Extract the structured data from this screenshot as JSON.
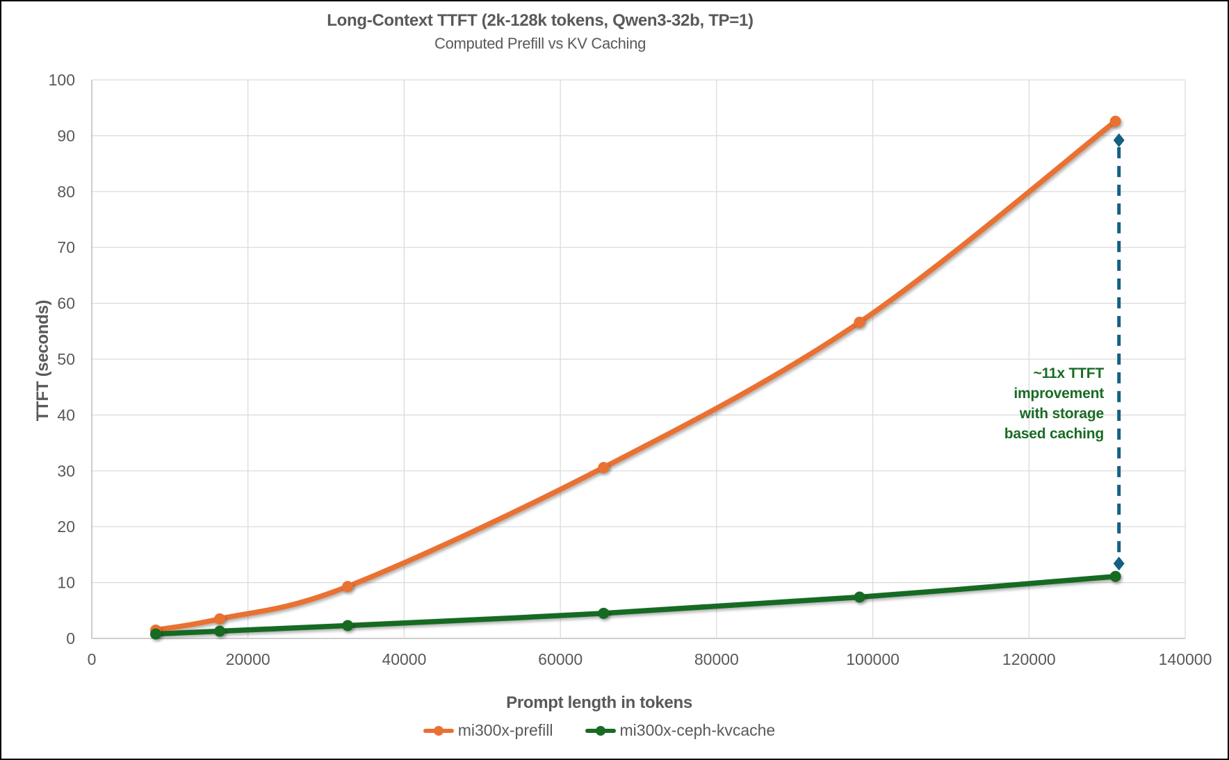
{
  "header": {
    "title": "Long-Context TTFT (2k-128k tokens, Qwen3-32b, TP=1)",
    "subtitle": "Computed Prefill vs KV Caching"
  },
  "chart_data": {
    "type": "line",
    "x": [
      8192,
      16384,
      32768,
      65536,
      98304,
      131072
    ],
    "series": [
      {
        "name": "mi300x-prefill",
        "color": "#E97132",
        "values": [
          1.5,
          3.5,
          9.3,
          30.6,
          56.6,
          92.6
        ]
      },
      {
        "name": "mi300x-ceph-kvcache",
        "color": "#196B24",
        "values": [
          0.8,
          1.3,
          2.3,
          4.5,
          7.4,
          11.1
        ]
      }
    ],
    "xlabel": "Prompt length in tokens",
    "ylabel": "TTFT (seconds)",
    "xlim": [
      0,
      140000
    ],
    "ylim": [
      0,
      100
    ],
    "xticks": [
      0,
      20000,
      40000,
      60000,
      80000,
      100000,
      120000,
      140000
    ],
    "yticks": [
      0,
      10,
      20,
      30,
      40,
      50,
      60,
      70,
      80,
      90,
      100
    ],
    "grid": true,
    "legend_position": "bottom",
    "annotation": {
      "lines": [
        "~11x TTFT",
        "improvement",
        "with storage",
        "based caching"
      ],
      "color": "#196B24",
      "arrow": {
        "x": 131072,
        "y_top": 89.2,
        "y_bottom": 13.4,
        "color": "#156082",
        "style": "dashed",
        "markers": "diamond"
      }
    }
  },
  "colors": {
    "grid": "#D9D9D9",
    "axis": "#BFBFBF",
    "text": "#595959"
  }
}
